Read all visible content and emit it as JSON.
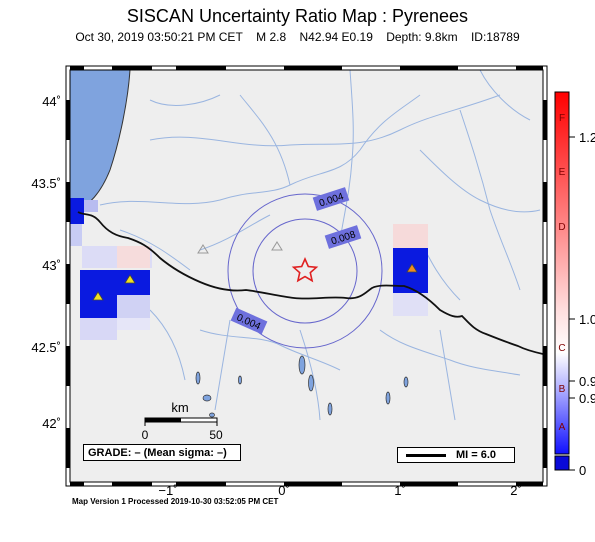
{
  "title": "SISCAN Uncertainty Ratio Map : Pyrenees",
  "event": {
    "datetime": "Oct 30, 2019 03:50:21 PM CET",
    "magnitude": "M 2.8",
    "location": "N42.94 E0.19",
    "depth": "Depth: 9.8km",
    "id": "ID:18789"
  },
  "lat_ticks": [
    "44˚",
    "43.5˚",
    "43˚",
    "42.5˚",
    "42˚"
  ],
  "lon_ticks": [
    "−1˚",
    "0˚",
    "1˚",
    "2˚"
  ],
  "contours": [
    "0.004",
    "0.008",
    "0.004"
  ],
  "scalebar": {
    "unit": "km",
    "left": "0",
    "right": "50"
  },
  "grade_label": "GRADE: – (Mean sigma: –)",
  "mi_legend": "MI = 6.0",
  "colorscale": {
    "letters": [
      "F",
      "E",
      "D",
      "C",
      "B",
      "A"
    ],
    "values": [
      "1.2",
      "1.0",
      "0.9",
      "0.9",
      "0"
    ]
  },
  "footer": "Map Version 1 Processed 2019-10-30 03:52:05 PM CET",
  "colors": {
    "ocean": "#7fa3de",
    "land": "#eeeeee",
    "rivers": "#9ab5e0",
    "contour": "#6666cc",
    "epicenter": "#e02020"
  }
}
